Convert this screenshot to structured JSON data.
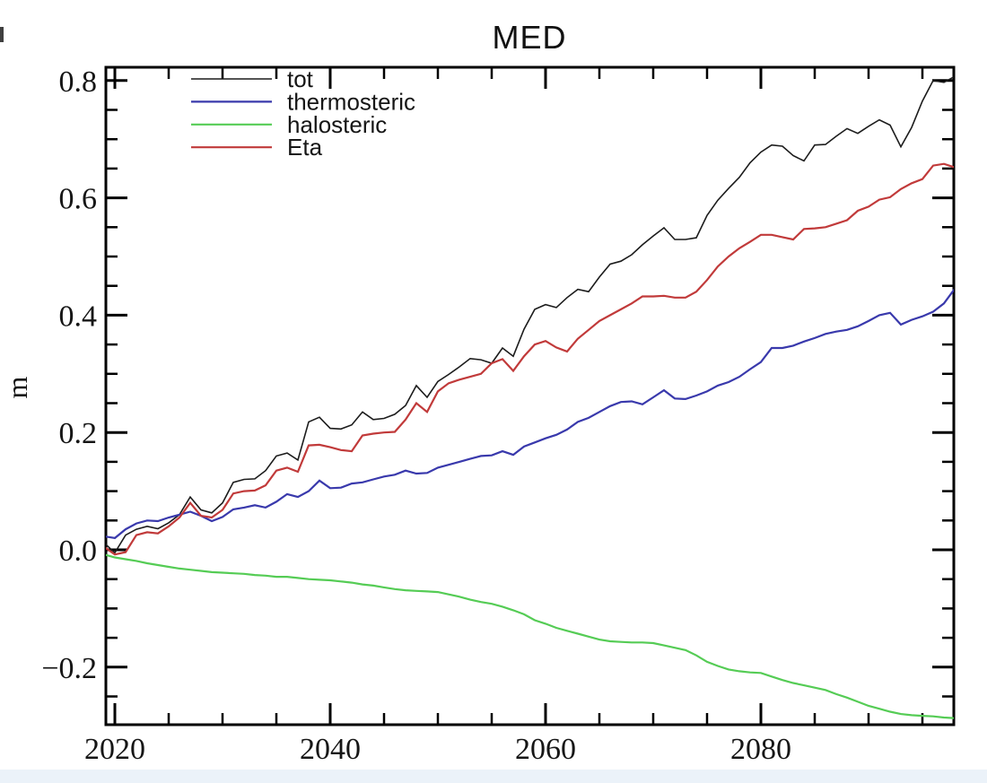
{
  "page": {
    "background": "#ffffff",
    "bottom_strip_color": "#ebf2f9"
  },
  "chart_data": {
    "type": "line",
    "title": "MED",
    "xlabel": "",
    "ylabel": "m",
    "grid": false,
    "legend_position": "top-left-inside",
    "axis_color": "#000000",
    "xlim": [
      2019,
      2098
    ],
    "ylim": [
      -0.3,
      0.82
    ],
    "x_major_ticks": [
      2020,
      2040,
      2060,
      2080
    ],
    "x_minor_step": 5,
    "y_major_ticks": [
      -0.2,
      0.0,
      0.2,
      0.4,
      0.6,
      0.8
    ],
    "y_minor_step": 0.05,
    "x": [
      2019,
      2020,
      2021,
      2022,
      2023,
      2024,
      2025,
      2026,
      2027,
      2028,
      2029,
      2030,
      2031,
      2032,
      2033,
      2034,
      2035,
      2036,
      2037,
      2038,
      2039,
      2040,
      2041,
      2042,
      2043,
      2044,
      2045,
      2046,
      2047,
      2048,
      2049,
      2050,
      2051,
      2052,
      2053,
      2054,
      2055,
      2056,
      2057,
      2058,
      2059,
      2060,
      2061,
      2062,
      2063,
      2064,
      2065,
      2066,
      2067,
      2068,
      2069,
      2070,
      2071,
      2072,
      2073,
      2074,
      2075,
      2076,
      2077,
      2078,
      2079,
      2080,
      2081,
      2082,
      2083,
      2084,
      2085,
      2086,
      2087,
      2088,
      2089,
      2090,
      2091,
      2092,
      2093,
      2094,
      2095,
      2096,
      2097,
      2098
    ],
    "series": [
      {
        "name": "tot",
        "color": "#1c1c1c",
        "width": 1.6,
        "values": [
          0.012,
          -0.005,
          0.025,
          0.035,
          0.04,
          0.036,
          0.046,
          0.06,
          0.09,
          0.068,
          0.063,
          0.08,
          0.115,
          0.12,
          0.121,
          0.135,
          0.16,
          0.165,
          0.153,
          0.218,
          0.226,
          0.207,
          0.206,
          0.213,
          0.235,
          0.222,
          0.224,
          0.231,
          0.246,
          0.28,
          0.26,
          0.287,
          0.299,
          0.312,
          0.326,
          0.324,
          0.318,
          0.344,
          0.33,
          0.376,
          0.41,
          0.418,
          0.413,
          0.43,
          0.444,
          0.44,
          0.465,
          0.487,
          0.492,
          0.503,
          0.52,
          0.535,
          0.549,
          0.529,
          0.529,
          0.532,
          0.57,
          0.596,
          0.616,
          0.635,
          0.66,
          0.678,
          0.69,
          0.688,
          0.672,
          0.663,
          0.69,
          0.691,
          0.705,
          0.718,
          0.71,
          0.722,
          0.733,
          0.724,
          0.687,
          0.72,
          0.765,
          0.8,
          0.797,
          0.807
        ]
      },
      {
        "name": "thermosteric",
        "color": "#3939ac",
        "width": 2.2,
        "values": [
          0.023,
          0.02,
          0.035,
          0.045,
          0.05,
          0.049,
          0.055,
          0.06,
          0.065,
          0.058,
          0.049,
          0.056,
          0.069,
          0.072,
          0.076,
          0.072,
          0.082,
          0.095,
          0.09,
          0.1,
          0.118,
          0.105,
          0.106,
          0.113,
          0.115,
          0.12,
          0.125,
          0.128,
          0.135,
          0.13,
          0.131,
          0.14,
          0.145,
          0.15,
          0.155,
          0.16,
          0.161,
          0.168,
          0.162,
          0.176,
          0.183,
          0.19,
          0.196,
          0.205,
          0.218,
          0.225,
          0.235,
          0.245,
          0.252,
          0.253,
          0.248,
          0.26,
          0.272,
          0.258,
          0.257,
          0.263,
          0.27,
          0.28,
          0.286,
          0.295,
          0.308,
          0.32,
          0.344,
          0.344,
          0.348,
          0.355,
          0.361,
          0.368,
          0.372,
          0.375,
          0.381,
          0.39,
          0.4,
          0.404,
          0.384,
          0.392,
          0.398,
          0.406,
          0.42,
          0.445
        ]
      },
      {
        "name": "halosteric",
        "color": "#55cc55",
        "width": 2.2,
        "values": [
          -0.008,
          -0.013,
          -0.016,
          -0.019,
          -0.023,
          -0.026,
          -0.029,
          -0.032,
          -0.034,
          -0.036,
          -0.038,
          -0.039,
          -0.04,
          -0.041,
          -0.043,
          -0.044,
          -0.046,
          -0.046,
          -0.048,
          -0.05,
          -0.051,
          -0.052,
          -0.054,
          -0.056,
          -0.059,
          -0.061,
          -0.064,
          -0.067,
          -0.069,
          -0.07,
          -0.071,
          -0.072,
          -0.076,
          -0.08,
          -0.085,
          -0.089,
          -0.092,
          -0.097,
          -0.103,
          -0.11,
          -0.12,
          -0.126,
          -0.133,
          -0.138,
          -0.143,
          -0.148,
          -0.153,
          -0.156,
          -0.157,
          -0.158,
          -0.158,
          -0.159,
          -0.163,
          -0.167,
          -0.171,
          -0.18,
          -0.191,
          -0.198,
          -0.204,
          -0.207,
          -0.209,
          -0.21,
          -0.216,
          -0.222,
          -0.227,
          -0.231,
          -0.235,
          -0.239,
          -0.246,
          -0.252,
          -0.259,
          -0.266,
          -0.271,
          -0.276,
          -0.28,
          -0.282,
          -0.283,
          -0.284,
          -0.286,
          -0.287
        ]
      },
      {
        "name": "Eta",
        "color": "#c13a3a",
        "width": 2.2,
        "values": [
          0.005,
          -0.008,
          -0.004,
          0.025,
          0.03,
          0.028,
          0.04,
          0.055,
          0.08,
          0.058,
          0.055,
          0.068,
          0.096,
          0.1,
          0.101,
          0.11,
          0.135,
          0.14,
          0.133,
          0.178,
          0.179,
          0.175,
          0.17,
          0.168,
          0.195,
          0.198,
          0.2,
          0.201,
          0.222,
          0.25,
          0.235,
          0.27,
          0.284,
          0.29,
          0.295,
          0.3,
          0.318,
          0.325,
          0.305,
          0.33,
          0.35,
          0.356,
          0.345,
          0.338,
          0.36,
          0.375,
          0.39,
          0.4,
          0.41,
          0.42,
          0.432,
          0.432,
          0.433,
          0.43,
          0.43,
          0.44,
          0.46,
          0.483,
          0.5,
          0.514,
          0.525,
          0.537,
          0.537,
          0.533,
          0.529,
          0.547,
          0.548,
          0.55,
          0.556,
          0.562,
          0.578,
          0.585,
          0.597,
          0.601,
          0.615,
          0.625,
          0.632,
          0.655,
          0.658,
          0.652
        ]
      }
    ]
  }
}
